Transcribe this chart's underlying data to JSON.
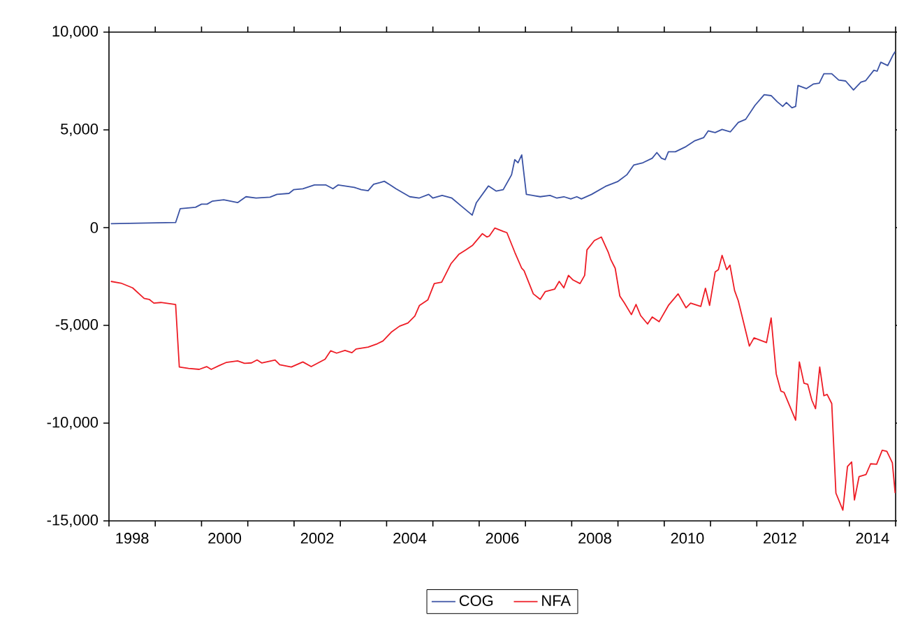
{
  "chart_data": {
    "type": "line",
    "xlim": [
      1998,
      2015
    ],
    "ylim": [
      -15000,
      10000
    ],
    "yticks": [
      {
        "value": -15000,
        "label": "-15,000"
      },
      {
        "value": -10000,
        "label": "-10,000"
      },
      {
        "value": -5000,
        "label": "-5,000"
      },
      0,
      {
        "value": 5000,
        "label": "5,000"
      },
      {
        "value": 10000,
        "label": "10,000"
      }
    ],
    "xticks": [
      {
        "value": 1998.5,
        "label": "1998"
      },
      {
        "value": 2000.5,
        "label": "2000"
      },
      {
        "value": 2002.5,
        "label": "2002"
      },
      {
        "value": 2004.5,
        "label": "2004"
      },
      {
        "value": 2006.5,
        "label": "2006"
      },
      {
        "value": 2008.5,
        "label": "2008"
      },
      {
        "value": 2010.5,
        "label": "2010"
      },
      {
        "value": 2012.5,
        "label": "2012"
      },
      {
        "value": 2014.5,
        "label": "2014"
      },
      {
        "value": 1998,
        "label": null
      },
      {
        "value": 1999,
        "label": null
      },
      {
        "value": 2000,
        "label": null
      },
      {
        "value": 2001,
        "label": null
      },
      {
        "value": 2002,
        "label": null
      },
      {
        "value": 2003,
        "label": null
      },
      {
        "value": 2004,
        "label": null
      },
      {
        "value": 2005,
        "label": null
      },
      {
        "value": 2006,
        "label": null
      },
      {
        "value": 2007,
        "label": null
      },
      {
        "value": 2008,
        "label": null
      },
      {
        "value": 2009,
        "label": null
      },
      {
        "value": 2010,
        "label": null
      },
      {
        "value": 2011,
        "label": null
      },
      {
        "value": 2012,
        "label": null
      },
      {
        "value": 2013,
        "label": null
      },
      {
        "value": 2014,
        "label": null
      },
      {
        "value": 2015,
        "label": null
      }
    ],
    "legend": "bottom",
    "series": [
      {
        "name": "COG",
        "color": "#3a52a4",
        "x": [
          1998.04,
          1999.44,
          1999.54,
          1999.87,
          2000.0,
          2000.12,
          2000.23,
          2000.48,
          2000.78,
          2000.96,
          2001.18,
          2001.48,
          2001.63,
          2001.89,
          2001.99,
          2002.19,
          2002.44,
          2002.69,
          2002.84,
          2002.95,
          2003.3,
          2003.45,
          2003.6,
          2003.72,
          2003.85,
          2003.95,
          2004.08,
          2004.2,
          2004.5,
          2004.7,
          2004.91,
          2005.0,
          2005.2,
          2005.41,
          2005.61,
          2005.85,
          2005.94,
          2006.2,
          2006.37,
          2006.52,
          2006.7,
          2006.77,
          2006.84,
          2006.92,
          2007.02,
          2007.32,
          2007.53,
          2007.68,
          2007.83,
          2007.98,
          2008.11,
          2008.21,
          2008.43,
          2008.73,
          2008.99,
          2009.19,
          2009.34,
          2009.54,
          2009.74,
          2009.84,
          2009.94,
          2010.02,
          2010.09,
          2010.24,
          2010.45,
          2010.65,
          2010.85,
          2010.95,
          2011.1,
          2011.25,
          2011.43,
          2011.6,
          2011.76,
          2011.96,
          2012.16,
          2012.31,
          2012.44,
          2012.56,
          2012.64,
          2012.76,
          2012.84,
          2012.89,
          2013.07,
          2013.22,
          2013.35,
          2013.45,
          2013.62,
          2013.77,
          2013.92,
          2014.09,
          2014.25,
          2014.35,
          2014.53,
          2014.6,
          2014.68,
          2014.83,
          2014.94,
          2014.99
        ],
        "values": [
          200,
          260,
          970,
          1040,
          1200,
          1200,
          1350,
          1420,
          1280,
          1580,
          1510,
          1560,
          1700,
          1750,
          1940,
          1990,
          2180,
          2180,
          1990,
          2180,
          2060,
          1940,
          1890,
          2220,
          2300,
          2370,
          2180,
          1990,
          1580,
          1510,
          1700,
          1510,
          1650,
          1510,
          1110,
          640,
          1280,
          2130,
          1870,
          1940,
          2700,
          3480,
          3320,
          3720,
          1700,
          1580,
          1650,
          1510,
          1580,
          1470,
          1580,
          1470,
          1700,
          2110,
          2350,
          2700,
          3200,
          3320,
          3550,
          3840,
          3550,
          3480,
          3880,
          3880,
          4120,
          4430,
          4600,
          4950,
          4860,
          5020,
          4900,
          5380,
          5540,
          6250,
          6800,
          6750,
          6440,
          6200,
          6400,
          6130,
          6200,
          7270,
          7110,
          7340,
          7390,
          7870,
          7870,
          7550,
          7500,
          7040,
          7440,
          7510,
          8050,
          8000,
          8460,
          8290,
          8810,
          9000
        ]
      },
      {
        "name": "NFA",
        "color": "#ee1c25",
        "x": [
          1998.04,
          1998.26,
          1998.51,
          1998.76,
          1998.87,
          1998.97,
          1999.12,
          1999.44,
          1999.52,
          1999.72,
          1999.95,
          2000.11,
          2000.21,
          2000.38,
          2000.53,
          2000.78,
          2000.93,
          2001.08,
          2001.2,
          2001.3,
          2001.59,
          2001.69,
          2001.94,
          2002.19,
          2002.37,
          2002.67,
          2002.79,
          2002.92,
          2003.1,
          2003.25,
          2003.34,
          2003.6,
          2003.8,
          2003.92,
          2004.1,
          2004.28,
          2004.46,
          2004.61,
          2004.71,
          2004.89,
          2005.03,
          2005.19,
          2005.39,
          2005.56,
          2005.71,
          2005.86,
          2006.07,
          2006.17,
          2006.22,
          2006.34,
          2006.52,
          2006.6,
          2006.77,
          2006.92,
          2006.97,
          2007.17,
          2007.32,
          2007.43,
          2007.63,
          2007.73,
          2007.83,
          2007.93,
          2008.03,
          2008.18,
          2008.28,
          2008.33,
          2008.49,
          2008.64,
          2008.79,
          2008.84,
          2008.94,
          2009.04,
          2009.14,
          2009.29,
          2009.39,
          2009.49,
          2009.64,
          2009.74,
          2009.89,
          2010.09,
          2010.3,
          2010.47,
          2010.57,
          2010.79,
          2010.89,
          2010.98,
          2011.1,
          2011.17,
          2011.25,
          2011.35,
          2011.42,
          2011.52,
          2011.6,
          2011.84,
          2011.94,
          2012.21,
          2012.31,
          2012.42,
          2012.52,
          2012.59,
          2012.84,
          2012.92,
          2013.02,
          2013.1,
          2013.19,
          2013.27,
          2013.36,
          2013.45,
          2013.52,
          2013.62,
          2013.71,
          2013.86,
          2013.96,
          2014.05,
          2014.11,
          2014.21,
          2014.36,
          2014.46,
          2014.59,
          2014.71,
          2014.81,
          2014.93,
          2014.99
        ],
        "values": [
          -2750,
          -2840,
          -3080,
          -3620,
          -3670,
          -3860,
          -3830,
          -3930,
          -7130,
          -7200,
          -7250,
          -7110,
          -7250,
          -7060,
          -6900,
          -6820,
          -6940,
          -6920,
          -6770,
          -6920,
          -6770,
          -7010,
          -7130,
          -6870,
          -7110,
          -6730,
          -6300,
          -6420,
          -6280,
          -6400,
          -6210,
          -6110,
          -5940,
          -5800,
          -5350,
          -5040,
          -4880,
          -4520,
          -3980,
          -3700,
          -2860,
          -2790,
          -1850,
          -1370,
          -1140,
          -900,
          -310,
          -480,
          -430,
          -20,
          -190,
          -260,
          -1260,
          -2080,
          -2200,
          -3390,
          -3670,
          -3270,
          -3150,
          -2750,
          -3080,
          -2440,
          -2680,
          -2860,
          -2440,
          -1140,
          -660,
          -480,
          -1260,
          -1610,
          -2080,
          -3500,
          -3860,
          -4450,
          -3930,
          -4500,
          -4930,
          -4570,
          -4810,
          -3980,
          -3390,
          -4100,
          -3860,
          -4030,
          -3100,
          -3980,
          -2270,
          -2150,
          -1420,
          -2150,
          -1920,
          -3220,
          -3740,
          -6060,
          -5640,
          -5880,
          -4620,
          -7480,
          -8360,
          -8430,
          -9850,
          -6870,
          -7960,
          -8010,
          -8830,
          -9260,
          -7130,
          -8600,
          -8530,
          -9000,
          -13580,
          -14450,
          -12220,
          -11990,
          -13930,
          -12740,
          -12630,
          -12080,
          -12100,
          -11390,
          -11440,
          -12030,
          -13580
        ]
      }
    ]
  }
}
